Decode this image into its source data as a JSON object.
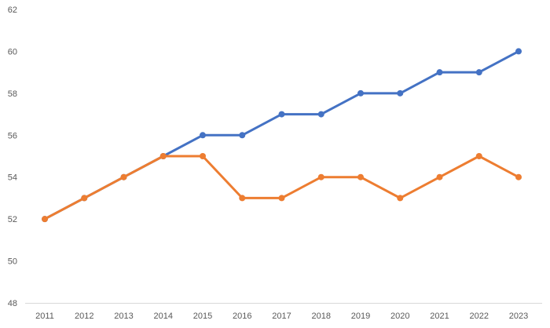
{
  "chart_data": {
    "type": "line",
    "x": [
      "2011",
      "2012",
      "2013",
      "2014",
      "2015",
      "2016",
      "2017",
      "2018",
      "2019",
      "2020",
      "2021",
      "2022",
      "2023"
    ],
    "ylim": [
      48,
      62
    ],
    "yticks": [
      48,
      50,
      52,
      54,
      56,
      58,
      60,
      62
    ],
    "grid": false,
    "title": "",
    "xlabel": "",
    "ylabel": "",
    "series": [
      {
        "color": "#4472C4",
        "values": [
          52,
          53,
          54,
          55,
          56,
          56,
          57,
          57,
          58,
          58,
          59,
          59,
          60
        ]
      },
      {
        "color": "#ED7D31",
        "values": [
          52,
          53,
          54,
          55,
          55,
          53,
          53,
          54,
          54,
          53,
          54,
          55,
          54
        ]
      }
    ]
  }
}
